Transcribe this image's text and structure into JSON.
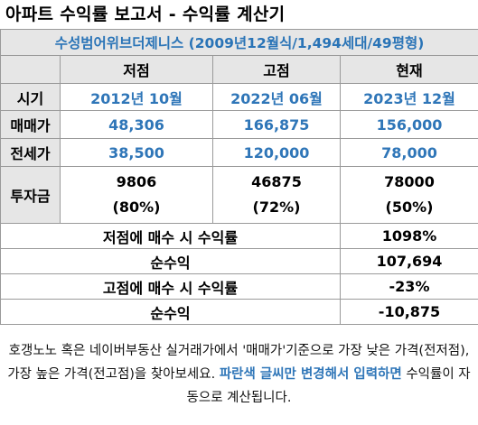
{
  "title": "아파트 수익률 보고서 - 수익률 계산기",
  "subtitle": "수성범어위브더제니스 (2009년12월식/1,494세대/49평형)",
  "columns": [
    "저점",
    "고점",
    "현재"
  ],
  "rows": {
    "period": {
      "label": "시기",
      "values": [
        "2012년 10월",
        "2022년 06월",
        "2023년 12월"
      ]
    },
    "sale": {
      "label": "매매가",
      "values": [
        "48,306",
        "166,875",
        "156,000"
      ]
    },
    "jeonse": {
      "label": "전세가",
      "values": [
        "38,500",
        "120,000",
        "78,000"
      ]
    },
    "investment": {
      "label": "투자금",
      "values": [
        "9806",
        "46875",
        "78000"
      ],
      "ratios": [
        "(80%)",
        "(72%)",
        "(50%)"
      ]
    }
  },
  "summary": [
    {
      "label": "저점에 매수 시 수익률",
      "value": "1098%"
    },
    {
      "label": "순수익",
      "value": "107,694"
    },
    {
      "label": "고점에 매수 시 수익률",
      "value": "-23%"
    },
    {
      "label": "순수익",
      "value": "-10,875"
    }
  ],
  "note": {
    "part1": "호갱노노 혹은 네이버부동산 실거래가에서 '매매가'기준으로 가장 낮은 가격(전저점), 가장 높은 가격(전고점)을 찾아보세요. ",
    "highlight": "파란색 글씨만 변경해서 입력하면",
    "part2": " 수익률이 자동으로 계산됩니다."
  },
  "colors": {
    "accent_blue": "#2f76b8",
    "header_gray": "#e6e6e6",
    "border_gray": "#9a9a9a"
  }
}
